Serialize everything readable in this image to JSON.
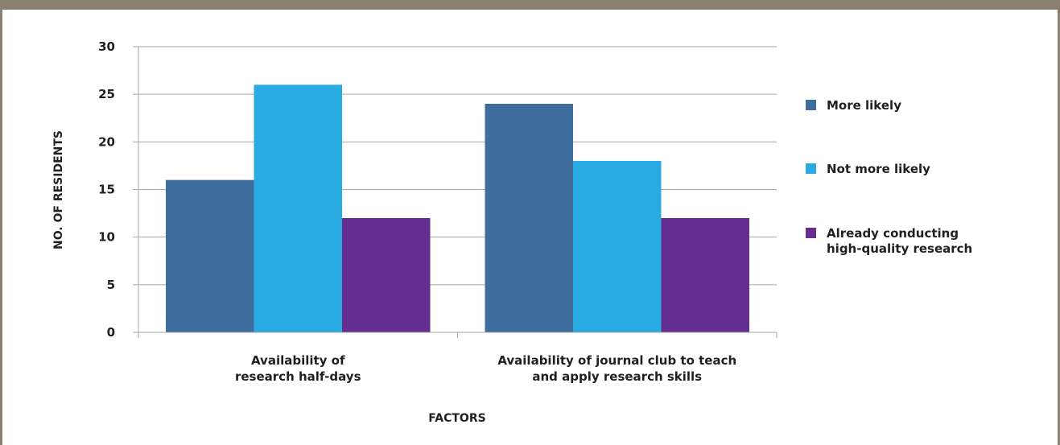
{
  "chart_data": {
    "type": "bar",
    "title": "",
    "xlabel": "FACTORS",
    "ylabel": "NO. OF RESIDENTS",
    "ylim": [
      0,
      30
    ],
    "yticks": [
      0,
      5,
      10,
      15,
      20,
      25,
      30
    ],
    "grid": true,
    "legend_position": "right",
    "categories": [
      [
        "Availability of",
        "research half-days"
      ],
      [
        "Availability of journal club to teach",
        "and apply research skills"
      ]
    ],
    "series": [
      {
        "name": [
          "More likely"
        ],
        "color": "#3e6d9e",
        "values": [
          16,
          24
        ]
      },
      {
        "name": [
          "Not more likely"
        ],
        "color": "#29abe2",
        "values": [
          26,
          18
        ]
      },
      {
        "name": [
          "Already conducting",
          "high-quality research"
        ],
        "color": "#662d91",
        "values": [
          12,
          12
        ]
      }
    ]
  }
}
